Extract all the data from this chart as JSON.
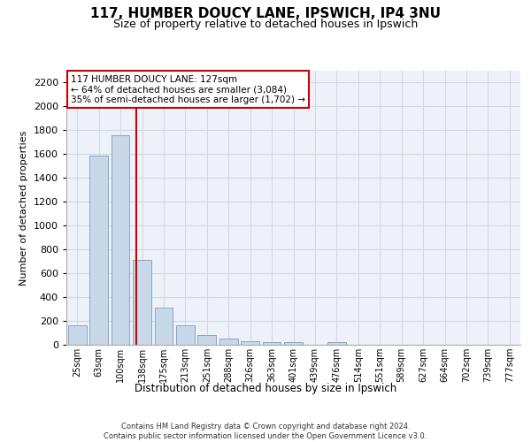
{
  "title_line1": "117, HUMBER DOUCY LANE, IPSWICH, IP4 3NU",
  "title_line2": "Size of property relative to detached houses in Ipswich",
  "xlabel": "Distribution of detached houses by size in Ipswich",
  "ylabel": "Number of detached properties",
  "categories": [
    "25sqm",
    "63sqm",
    "100sqm",
    "138sqm",
    "175sqm",
    "213sqm",
    "251sqm",
    "288sqm",
    "326sqm",
    "363sqm",
    "401sqm",
    "439sqm",
    "476sqm",
    "514sqm",
    "551sqm",
    "589sqm",
    "627sqm",
    "664sqm",
    "702sqm",
    "739sqm",
    "777sqm"
  ],
  "values": [
    160,
    1590,
    1760,
    710,
    315,
    160,
    85,
    50,
    30,
    20,
    20,
    0,
    20,
    0,
    0,
    0,
    0,
    0,
    0,
    0,
    0
  ],
  "bar_color": "#c8d8e8",
  "bar_edgecolor": "#6090b8",
  "grid_color": "#d0d8e8",
  "background_color": "#eef2f8",
  "vline_color": "#cc0000",
  "annotation_text": "117 HUMBER DOUCY LANE: 127sqm\n← 64% of detached houses are smaller (3,084)\n35% of semi-detached houses are larger (1,702) →",
  "annotation_box_color": "#ffffff",
  "annotation_box_edgecolor": "#cc0000",
  "footnote": "Contains HM Land Registry data © Crown copyright and database right 2024.\nContains public sector information licensed under the Open Government Licence v3.0.",
  "ylim": [
    0,
    2300
  ],
  "yticks": [
    0,
    200,
    400,
    600,
    800,
    1000,
    1200,
    1400,
    1600,
    1800,
    2000,
    2200
  ]
}
